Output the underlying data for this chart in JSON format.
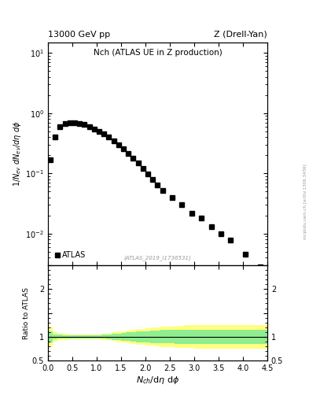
{
  "title_top": "13000 GeV pp",
  "title_right": "Z (Drell-Yan)",
  "plot_title": "Nch (ATLAS UE in Z production)",
  "xlabel": "$N_{ch}$/dη dφ",
  "ylabel_ratio": "Ratio to ATLAS",
  "watermark": "(ATLAS_2019_I1736531)",
  "side_label": "mcplots.cern.ch [arXiv:1306.3436]",
  "legend_label": "ATLAS",
  "data_x": [
    0.05,
    0.15,
    0.25,
    0.35,
    0.45,
    0.55,
    0.65,
    0.75,
    0.85,
    0.95,
    1.05,
    1.15,
    1.25,
    1.35,
    1.45,
    1.55,
    1.65,
    1.75,
    1.85,
    1.95,
    2.05,
    2.15,
    2.25,
    2.35,
    2.55,
    2.75,
    2.95,
    3.15,
    3.35,
    3.55,
    3.75,
    4.05,
    4.35
  ],
  "data_y": [
    0.17,
    0.4,
    0.6,
    0.68,
    0.7,
    0.7,
    0.68,
    0.65,
    0.6,
    0.55,
    0.5,
    0.45,
    0.4,
    0.35,
    0.3,
    0.255,
    0.215,
    0.178,
    0.148,
    0.12,
    0.098,
    0.08,
    0.065,
    0.052,
    0.04,
    0.03,
    0.022,
    0.018,
    0.013,
    0.01,
    0.0078,
    0.0045,
    0.0028
  ],
  "green_band_upper": [
    1.12,
    1.05,
    1.04,
    1.03,
    1.03,
    1.03,
    1.03,
    1.03,
    1.03,
    1.03,
    1.03,
    1.04,
    1.05,
    1.06,
    1.07,
    1.08,
    1.09,
    1.1,
    1.11,
    1.12,
    1.12,
    1.13,
    1.13,
    1.14,
    1.14,
    1.15,
    1.15,
    1.15,
    1.15,
    1.15,
    1.15,
    1.15,
    1.15
  ],
  "green_band_lower": [
    0.88,
    0.95,
    0.96,
    0.97,
    0.97,
    0.97,
    0.97,
    0.97,
    0.97,
    0.97,
    0.97,
    0.96,
    0.95,
    0.94,
    0.93,
    0.92,
    0.91,
    0.9,
    0.89,
    0.88,
    0.88,
    0.87,
    0.87,
    0.86,
    0.86,
    0.85,
    0.85,
    0.85,
    0.85,
    0.85,
    0.85,
    0.85,
    0.85
  ],
  "yellow_band_upper": [
    1.22,
    1.1,
    1.07,
    1.06,
    1.05,
    1.05,
    1.05,
    1.05,
    1.05,
    1.05,
    1.05,
    1.06,
    1.07,
    1.09,
    1.11,
    1.12,
    1.13,
    1.15,
    1.16,
    1.17,
    1.18,
    1.19,
    1.2,
    1.21,
    1.22,
    1.23,
    1.24,
    1.25,
    1.25,
    1.25,
    1.25,
    1.25,
    1.25
  ],
  "yellow_band_lower": [
    0.78,
    0.9,
    0.93,
    0.94,
    0.95,
    0.95,
    0.95,
    0.95,
    0.95,
    0.95,
    0.95,
    0.94,
    0.93,
    0.91,
    0.89,
    0.88,
    0.87,
    0.85,
    0.84,
    0.83,
    0.82,
    0.81,
    0.8,
    0.79,
    0.78,
    0.77,
    0.76,
    0.75,
    0.75,
    0.75,
    0.75,
    0.75,
    0.75
  ],
  "band_x_left": [
    0.0,
    0.1,
    0.2,
    0.3,
    0.4,
    0.5,
    0.6,
    0.7,
    0.8,
    0.9,
    1.0,
    1.1,
    1.2,
    1.3,
    1.4,
    1.5,
    1.6,
    1.7,
    1.8,
    1.9,
    2.0,
    2.1,
    2.2,
    2.3,
    2.4,
    2.6,
    2.8,
    3.0,
    3.2,
    3.4,
    3.6,
    3.8,
    4.2
  ],
  "band_x_right": [
    0.1,
    0.2,
    0.3,
    0.4,
    0.5,
    0.6,
    0.7,
    0.8,
    0.9,
    1.0,
    1.1,
    1.2,
    1.3,
    1.4,
    1.5,
    1.6,
    1.7,
    1.8,
    1.9,
    2.0,
    2.1,
    2.2,
    2.3,
    2.4,
    2.6,
    2.8,
    3.0,
    3.2,
    3.4,
    3.6,
    3.8,
    4.2,
    4.5
  ],
  "ylim_main": [
    0.003,
    15.0
  ],
  "ylim_ratio": [
    0.5,
    2.5
  ],
  "xlim": [
    0.0,
    4.5
  ],
  "marker_color": "black",
  "marker_size": 4,
  "green_color": "#90EE90",
  "yellow_color": "#FFFF80",
  "line_color": "black",
  "bg_color": "white"
}
